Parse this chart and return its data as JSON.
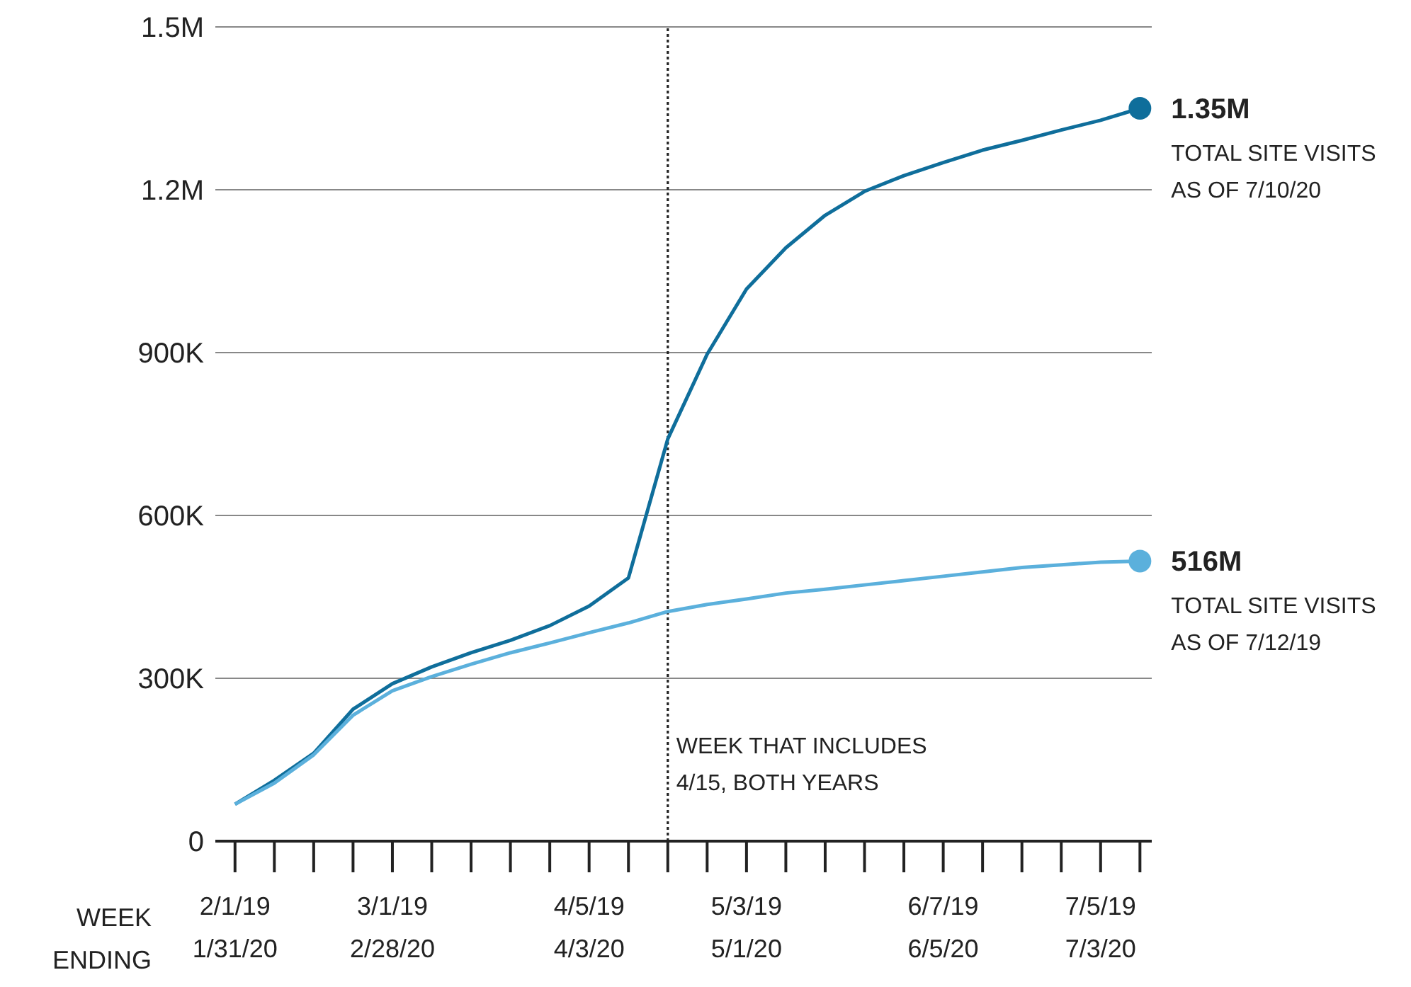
{
  "chart_data": {
    "type": "line",
    "xlabel": "WEEK\nENDING",
    "categories": [
      "2/1/19\n1/31/20",
      null,
      null,
      null,
      "3/1/19\n2/28/20",
      null,
      null,
      null,
      null,
      "4/5/19\n4/3/20",
      null,
      null,
      null,
      "5/3/19\n5/1/20",
      null,
      null,
      null,
      null,
      "6/7/19\n6/5/20",
      null,
      null,
      null,
      "7/5/19\n7/3/20",
      null
    ],
    "series": [
      {
        "color": "#0f6e9b",
        "values": [
          68000,
          112000,
          162000,
          243000,
          290000,
          321000,
          347000,
          370000,
          397000,
          433000,
          485000,
          741000,
          897000,
          1017000,
          1093000,
          1153000,
          1197000,
          1226000,
          1250000,
          1273000,
          1291000,
          1310000,
          1328000,
          1350000
        ]
      },
      {
        "color": "#5bb0dc",
        "values": [
          68000,
          107000,
          159000,
          232000,
          277000,
          303000,
          326000,
          347000,
          365000,
          384000,
          402000,
          423000,
          436000,
          446000,
          457000,
          464000,
          472000,
          480000,
          488000,
          496000,
          504000,
          509000,
          514000,
          516000
        ]
      }
    ],
    "ylim": [
      0,
      1500000
    ],
    "yticks": [
      0,
      {
        "value": 300000,
        "label": "300K"
      },
      {
        "value": 600000,
        "label": "600K"
      },
      {
        "value": 900000,
        "label": "900K"
      },
      {
        "value": 1200000,
        "label": "1.2M"
      },
      {
        "value": 1500000,
        "label": "1.5M"
      }
    ],
    "grid": "y",
    "annotations": [
      "1.35M\nTOTAL SITE VISITS\nAS OF 7/10/20",
      "516M\nTOTAL SITE VISITS\nAS OF 7/12/19",
      "WEEK THAT INCLUDES\n4/15, BOTH YEARS"
    ]
  }
}
